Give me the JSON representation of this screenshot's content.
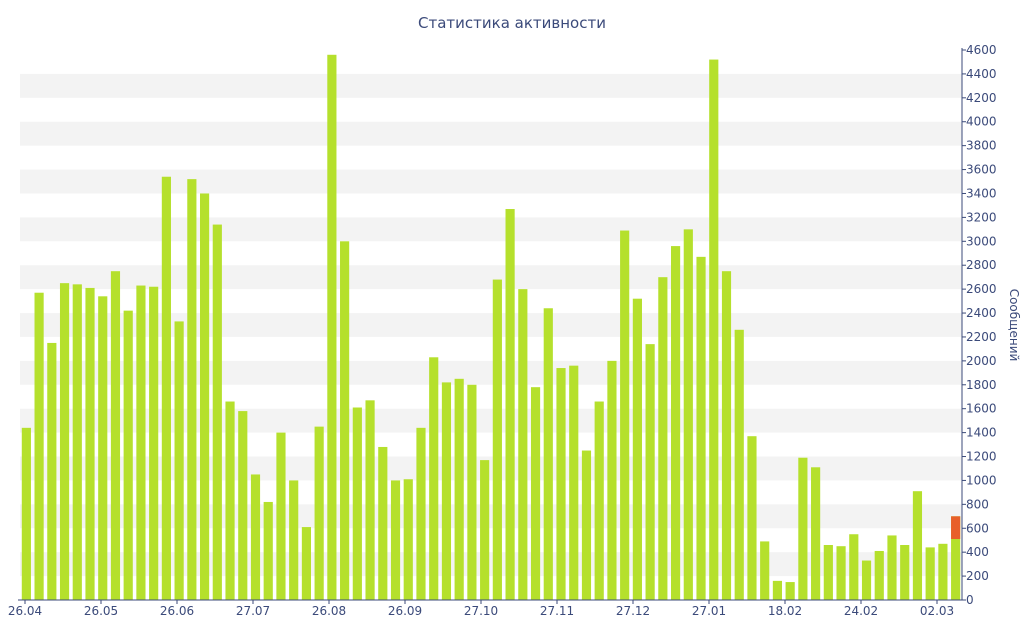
{
  "chart_data": {
    "type": "bar",
    "title": "Статистика активности",
    "ylabel": "Сообщений",
    "ylim": [
      0,
      4600
    ],
    "y_ticks": [
      0,
      200,
      400,
      600,
      800,
      1000,
      1200,
      1400,
      1600,
      1800,
      2000,
      2200,
      2400,
      2600,
      2800,
      3000,
      3200,
      3400,
      3600,
      3800,
      4000,
      4200,
      4400,
      4600
    ],
    "x_tick_labels": [
      "26.04",
      "26.05",
      "26.06",
      "27.07",
      "26.08",
      "26.09",
      "27.10",
      "27.11",
      "27.12",
      "27.01",
      "18.02",
      "24.02",
      "02.03"
    ],
    "grid": "alternating-horizontal-bands",
    "colors": {
      "bar": "#b5e02c",
      "highlight": "#e85f2a",
      "text": "#3b4a7a",
      "band": "#f3f3f3"
    },
    "values": [
      1440,
      2570,
      2150,
      2650,
      2640,
      2610,
      2540,
      2750,
      2420,
      2630,
      2620,
      3540,
      2330,
      3520,
      3400,
      3140,
      1660,
      1580,
      1050,
      820,
      1400,
      1000,
      610,
      1450,
      4560,
      3000,
      1610,
      1670,
      1280,
      1000,
      1010,
      1440,
      2030,
      1820,
      1850,
      1800,
      1170,
      2680,
      3270,
      2600,
      1780,
      2440,
      1940,
      1960,
      1250,
      1660,
      2000,
      3090,
      2520,
      2140,
      2700,
      2960,
      3100,
      2870,
      4520,
      2750,
      2260,
      1370,
      490,
      160,
      150,
      1190,
      1110,
      460,
      450,
      550,
      330,
      410,
      540,
      460,
      910,
      440,
      470,
      700
    ],
    "highlight": {
      "index": 73,
      "value": 700,
      "base": 510
    }
  }
}
